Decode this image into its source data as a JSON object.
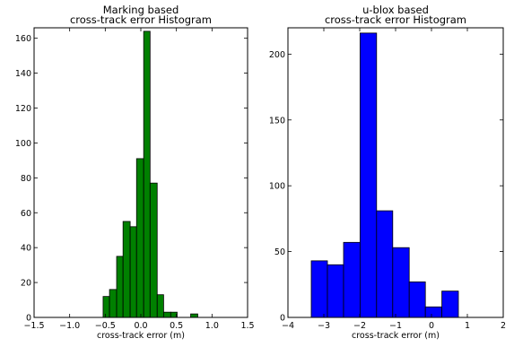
{
  "chart_data": [
    {
      "type": "bar",
      "title": "Marking based\ncross-track error Histogram",
      "xlabel": "cross-track error (m)",
      "ylabel": "",
      "xlim": [
        -1.5,
        1.5
      ],
      "ylim": [
        0,
        166
      ],
      "xticks": [
        -1.5,
        -1.0,
        -0.5,
        0.0,
        0.5,
        1.0,
        1.5
      ],
      "xtick_labels": [
        "−1.5",
        "−1.0",
        "−0.5",
        "0.0",
        "0.5",
        "1.0",
        "1.5"
      ],
      "yticks": [
        0,
        20,
        40,
        60,
        80,
        100,
        120,
        140,
        160
      ],
      "ytick_labels": [
        "0",
        "20",
        "40",
        "60",
        "80",
        "100",
        "120",
        "140",
        "160"
      ],
      "bar_color": "#008000",
      "bin_edges": [
        -0.53,
        -0.44,
        -0.34,
        -0.25,
        -0.15,
        -0.06,
        0.04,
        0.13,
        0.23,
        0.32,
        0.42,
        0.51,
        0.61,
        0.7,
        0.8
      ],
      "values": [
        12,
        16,
        35,
        55,
        52,
        91,
        164,
        77,
        13,
        3,
        3,
        0,
        0,
        2
      ],
      "grid": false,
      "legend": "none"
    },
    {
      "type": "bar",
      "title": "u-blox based\ncross-track error Histogram",
      "xlabel": "cross-track error (m)",
      "ylabel": "",
      "xlim": [
        -4,
        2
      ],
      "ylim": [
        0,
        220
      ],
      "xticks": [
        -4,
        -3,
        -2,
        -1,
        0,
        1,
        2
      ],
      "xtick_labels": [
        "−4",
        "−3",
        "−2",
        "−1",
        "0",
        "1",
        "2"
      ],
      "yticks": [
        0,
        50,
        100,
        150,
        200
      ],
      "ytick_labels": [
        "0",
        "50",
        "100",
        "150",
        "200"
      ],
      "bar_color": "#0000ff",
      "bin_edges": [
        -3.35,
        -2.9,
        -2.45,
        -1.99,
        -1.53,
        -1.08,
        -0.62,
        -0.17,
        0.29,
        0.75,
        1.2
      ],
      "values": [
        43,
        40,
        57,
        216,
        81,
        53,
        27,
        8,
        20,
        0
      ],
      "grid": false,
      "legend": "none"
    }
  ]
}
